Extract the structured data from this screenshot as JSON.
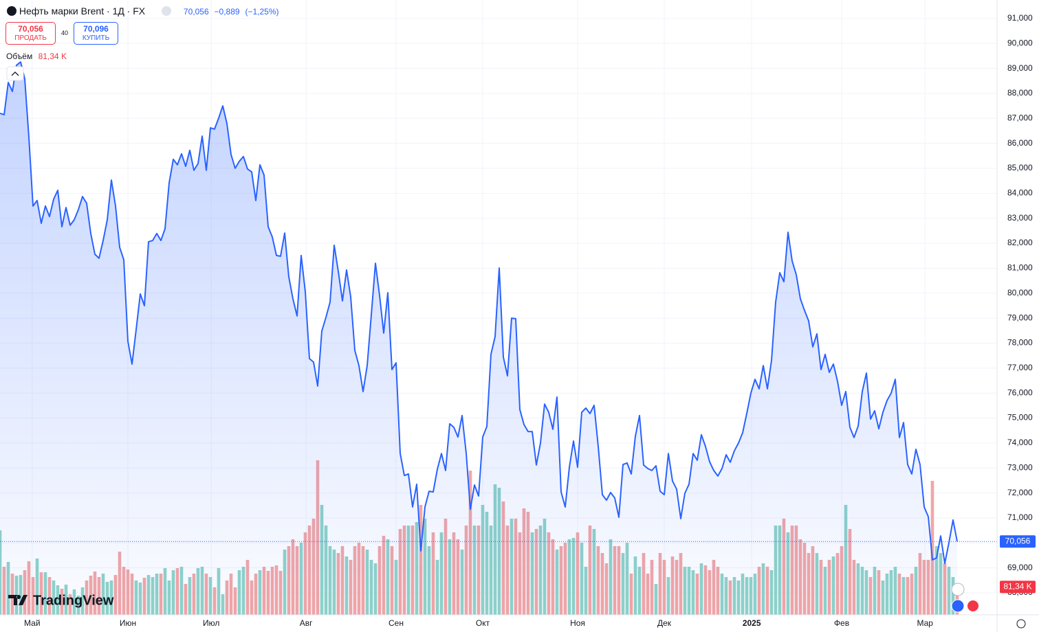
{
  "header": {
    "symbol": "Нефть марки Brent · 1Д · FX",
    "last": "70,056",
    "change": "−0,889",
    "change_pct": "(−1,25%)",
    "sell_price": "70,056",
    "sell": "ПРОДАТЬ",
    "spread": "40",
    "buy_price": "70,096",
    "buy": "КУПИТЬ",
    "volume_label": "Объём",
    "volume_value": "81,34 K",
    "logo": "TradingView"
  },
  "chart_data": {
    "type": "line",
    "grid": true,
    "xlim": [
      0,
      241.67
    ],
    "xticks": [
      {
        "value": 7.8,
        "label": "Май"
      },
      {
        "value": 31,
        "label": "Июн"
      },
      {
        "value": 51.2,
        "label": "Июл"
      },
      {
        "value": 74.2,
        "label": "Авг"
      },
      {
        "value": 96,
        "label": "Сен"
      },
      {
        "value": 117,
        "label": "Окт"
      },
      {
        "value": 140,
        "label": "Ноя"
      },
      {
        "value": 161,
        "label": "Дек"
      },
      {
        "value": 182.2,
        "label": "2025"
      },
      {
        "value": 204,
        "label": "Фев"
      },
      {
        "value": 224.2,
        "label": "Мар"
      }
    ],
    "ylim": [
      67.12,
      91.74
    ],
    "yticks": [
      {
        "value": 68,
        "label": "68,000"
      },
      {
        "value": 69,
        "label": "69,000"
      },
      {
        "value": 70,
        "label": "70,000"
      },
      {
        "value": 71,
        "label": "71,000"
      },
      {
        "value": 72,
        "label": "72,000"
      },
      {
        "value": 73,
        "label": "73,000"
      },
      {
        "value": 74,
        "label": "74,000"
      },
      {
        "value": 75,
        "label": "75,000"
      },
      {
        "value": 76,
        "label": "76,000"
      },
      {
        "value": 77,
        "label": "77,000"
      },
      {
        "value": 78,
        "label": "78,000"
      },
      {
        "value": 79,
        "label": "79,000"
      },
      {
        "value": 80,
        "label": "80,000"
      },
      {
        "value": 81,
        "label": "81,000"
      },
      {
        "value": 82,
        "label": "82,000"
      },
      {
        "value": 83,
        "label": "83,000"
      },
      {
        "value": 84,
        "label": "84,000"
      },
      {
        "value": 85,
        "label": "85,000"
      },
      {
        "value": 86,
        "label": "86,000"
      },
      {
        "value": 87,
        "label": "87,000"
      },
      {
        "value": 88,
        "label": "88,000"
      },
      {
        "value": 89,
        "label": "89,000"
      },
      {
        "value": 90,
        "label": "90,000"
      },
      {
        "value": 91,
        "label": "91,000"
      }
    ],
    "price_tag": "70,056",
    "volume_tag": "81,34 K",
    "series": [
      {
        "name": "Нефть марки Brent",
        "color": "#2962ff",
        "values": [
          87.2,
          87.15,
          88.44,
          88.08,
          89.13,
          89.26,
          88.58,
          86.24,
          83.49,
          83.71,
          82.8,
          83.49,
          83.07,
          83.76,
          84.12,
          82.66,
          83.43,
          82.72,
          82.94,
          83.35,
          83.87,
          83.6,
          82.39,
          81.56,
          81.4,
          82.11,
          82.94,
          84.53,
          83.49,
          81.84,
          81.34,
          78.07,
          77.16,
          78.54,
          79.97,
          79.5,
          82.06,
          82.11,
          82.39,
          82.11,
          82.58,
          84.42,
          85.36,
          85.14,
          85.58,
          85.08,
          85.72,
          84.92,
          85.19,
          86.29,
          84.92,
          86.62,
          86.57,
          87.01,
          87.5,
          86.79,
          85.55,
          85.0,
          85.28,
          85.47,
          84.97,
          84.86,
          83.71,
          85.14,
          84.73,
          82.66,
          82.25,
          81.51,
          81.48,
          82.41,
          80.65,
          79.77,
          79.09,
          81.51,
          80.05,
          77.38,
          77.24,
          76.28,
          78.48,
          79.03,
          79.64,
          81.92,
          80.87,
          79.69,
          80.93,
          79.86,
          77.71,
          77.1,
          76.06,
          77.1,
          79.14,
          81.2,
          79.91,
          78.4,
          80.02,
          76.94,
          77.21,
          73.58,
          72.7,
          72.76,
          71.44,
          72.35,
          69.68,
          71.44,
          72.07,
          72.04,
          72.95,
          73.58,
          72.9,
          74.77,
          74.63,
          74.24,
          75.1,
          73.58,
          71.35,
          72.32,
          71.88,
          74.24,
          74.66,
          77.55,
          78.26,
          81.01,
          77.44,
          76.69,
          79.0,
          78.98,
          75.34,
          74.74,
          74.46,
          74.46,
          73.12,
          74.0,
          75.56,
          75.23,
          74.55,
          75.84,
          72.04,
          71.44,
          73.03,
          74.08,
          73.03,
          75.23,
          75.4,
          75.18,
          75.51,
          73.86,
          71.93,
          71.71,
          72.02,
          71.8,
          71.03,
          73.14,
          73.2,
          72.76,
          74.27,
          75.1,
          73.12,
          72.98,
          72.9,
          73.09,
          72.07,
          71.93,
          73.58,
          72.48,
          72.15,
          70.97,
          71.99,
          72.35,
          73.58,
          73.31,
          74.33,
          73.86,
          73.25,
          72.9,
          72.68,
          72.98,
          73.53,
          73.23,
          73.69,
          74.0,
          74.41,
          75.18,
          76.0,
          76.55,
          76.17,
          77.1,
          76.17,
          77.3,
          79.64,
          80.82,
          80.46,
          82.44,
          81.29,
          80.74,
          79.77,
          79.31,
          78.89,
          77.85,
          78.37,
          76.94,
          77.55,
          76.83,
          77.16,
          76.47,
          75.51,
          76.06,
          74.63,
          74.22,
          74.68,
          76.06,
          76.8,
          74.96,
          75.29,
          74.57,
          75.23,
          75.7,
          76.0,
          76.55,
          74.22,
          74.82,
          73.14,
          72.76,
          73.75,
          73.14,
          71.44,
          71.05,
          69.32,
          69.4,
          70.28,
          69.18,
          70.01,
          70.92,
          70.056
        ]
      },
      {
        "name": "Объём",
        "up_color": "#8fd3c8",
        "down_color": "#f3a6a6",
        "values": [
          246,
          140,
          154,
          120,
          114,
          116,
          130,
          156,
          110,
          164,
          124,
          124,
          110,
          100,
          86,
          76,
          88,
          60,
          74,
          56,
          80,
          100,
          114,
          126,
          110,
          120,
          96,
          100,
          116,
          184,
          140,
          132,
          120,
          100,
          94,
          108,
          116,
          110,
          120,
          120,
          136,
          100,
          130,
          136,
          140,
          90,
          110,
          120,
          136,
          140,
          120,
          110,
          80,
          136,
          60,
          100,
          120,
          80,
          130,
          140,
          160,
          100,
          120,
          130,
          140,
          128,
          140,
          144,
          128,
          190,
          200,
          220,
          200,
          210,
          240,
          260,
          280,
          450,
          320,
          260,
          200,
          190,
          180,
          200,
          170,
          160,
          200,
          210,
          200,
          190,
          160,
          150,
          200,
          230,
          220,
          200,
          160,
          250,
          260,
          260,
          260,
          270,
          320,
          280,
          200,
          240,
          160,
          240,
          280,
          220,
          240,
          220,
          190,
          260,
          420,
          260,
          260,
          320,
          300,
          260,
          380,
          370,
          330,
          260,
          280,
          280,
          240,
          310,
          300,
          240,
          250,
          260,
          280,
          240,
          220,
          190,
          200,
          210,
          220,
          224,
          240,
          210,
          140,
          260,
          250,
          200,
          180,
          150,
          220,
          200,
          200,
          180,
          210,
          120,
          170,
          140,
          180,
          120,
          160,
          90,
          180,
          160,
          110,
          170,
          160,
          180,
          140,
          140,
          130,
          120,
          150,
          144,
          130,
          160,
          140,
          120,
          110,
          100,
          110,
          100,
          120,
          110,
          110,
          120,
          140,
          150,
          140,
          130,
          260,
          260,
          280,
          240,
          260,
          260,
          220,
          210,
          180,
          200,
          180,
          160,
          140,
          160,
          170,
          180,
          200,
          320,
          250,
          160,
          150,
          140,
          130,
          110,
          140,
          130,
          100,
          120,
          130,
          140,
          120,
          110,
          110,
          120,
          140,
          180,
          160,
          160,
          390,
          200,
          180,
          150,
          140,
          110,
          81.34
        ]
      }
    ]
  }
}
